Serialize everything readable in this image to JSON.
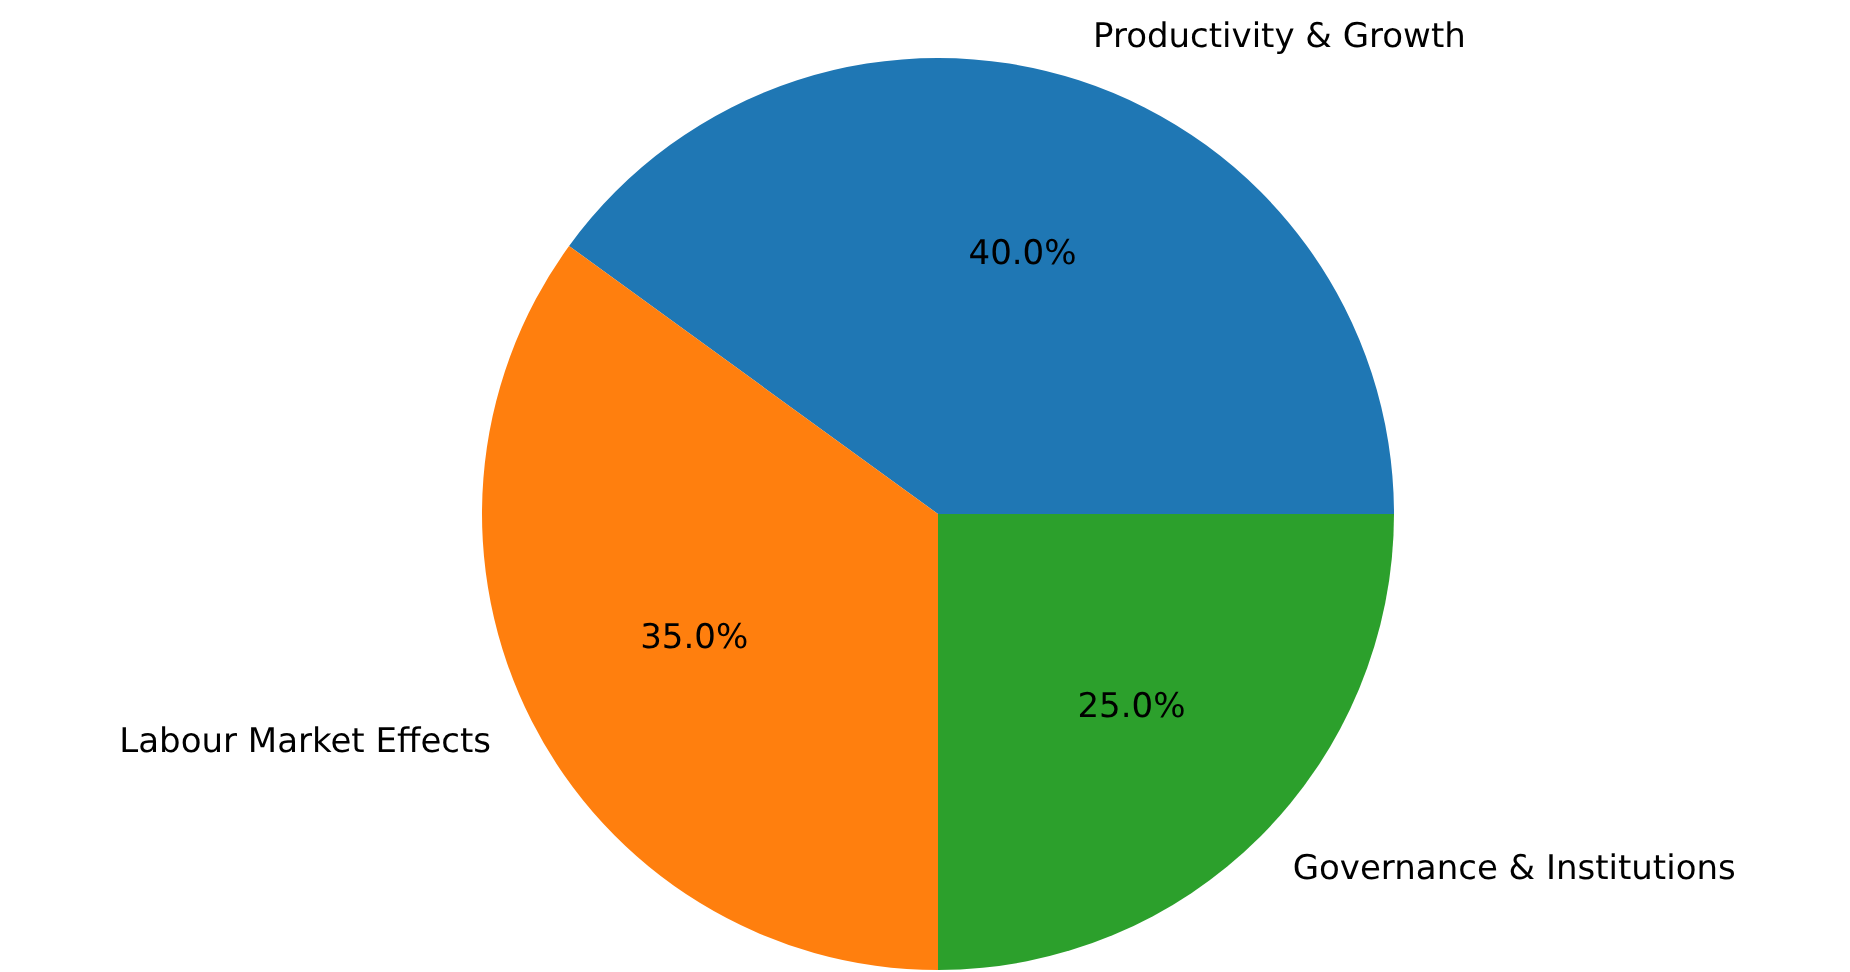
{
  "chart_data": {
    "type": "pie",
    "categories": [
      "Productivity & Growth",
      "Labour Market Effects",
      "Governance & Institutions"
    ],
    "values": [
      40,
      35,
      25
    ],
    "colors": [
      "#1f77b4",
      "#ff7f0e",
      "#2ca02c"
    ],
    "value_labels": [
      "40.0%",
      "35.0%",
      "25.0%"
    ]
  }
}
